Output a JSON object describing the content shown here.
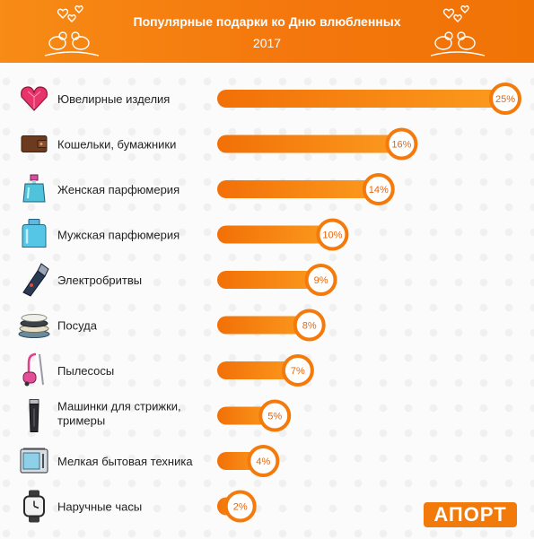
{
  "header": {
    "title": "Популярные подарки ко Дню влюбленных",
    "subtitle": "2017"
  },
  "logo": {
    "text": "АПОРТ"
  },
  "colors": {
    "accent": "#f47a0b",
    "bar_start": "#f27007",
    "bar_end": "#fb9a1e",
    "label_text": "#222222",
    "value_text": "#e8650a"
  },
  "chart_data": {
    "type": "bar",
    "orientation": "horizontal",
    "title": "Популярные подарки ко Дню влюбленных",
    "subtitle": "2017",
    "unit": "%",
    "categories": [
      "Ювелирные изделия",
      "Кошельки, бумажники",
      "Женская парфюмерия",
      "Мужская парфюмерия",
      "Электробритвы",
      "Посуда",
      "Пылесосы",
      "Машинки для стрижки, тримеры",
      "Мелкая бытовая техника",
      "Наручные часы"
    ],
    "category_lines": [
      [
        "Ювелирные изделия"
      ],
      [
        "Кошельки, бумажники"
      ],
      [
        "Женская парфюмерия"
      ],
      [
        "Мужская парфюмерия"
      ],
      [
        "Электробритвы"
      ],
      [
        "Посуда"
      ],
      [
        "Пылесосы"
      ],
      [
        "Машинки для стрижки,",
        "тримеры"
      ],
      [
        "Мелкая бытовая техника"
      ],
      [
        "Наручные часы"
      ]
    ],
    "values": [
      25,
      16,
      14,
      10,
      9,
      8,
      7,
      5,
      4,
      2
    ],
    "value_labels": [
      "25%",
      "16%",
      "14%",
      "10%",
      "9%",
      "8%",
      "7%",
      "5%",
      "4%",
      "2%"
    ],
    "icons": [
      "heart-gem-icon",
      "wallet-icon",
      "perfume-bottle-pink-icon",
      "perfume-bottle-blue-icon",
      "electric-shaver-icon",
      "plates-stack-icon",
      "vacuum-cleaner-icon",
      "hair-clipper-icon",
      "microwave-icon",
      "wristwatch-icon"
    ],
    "grid": false,
    "legend": "none"
  }
}
